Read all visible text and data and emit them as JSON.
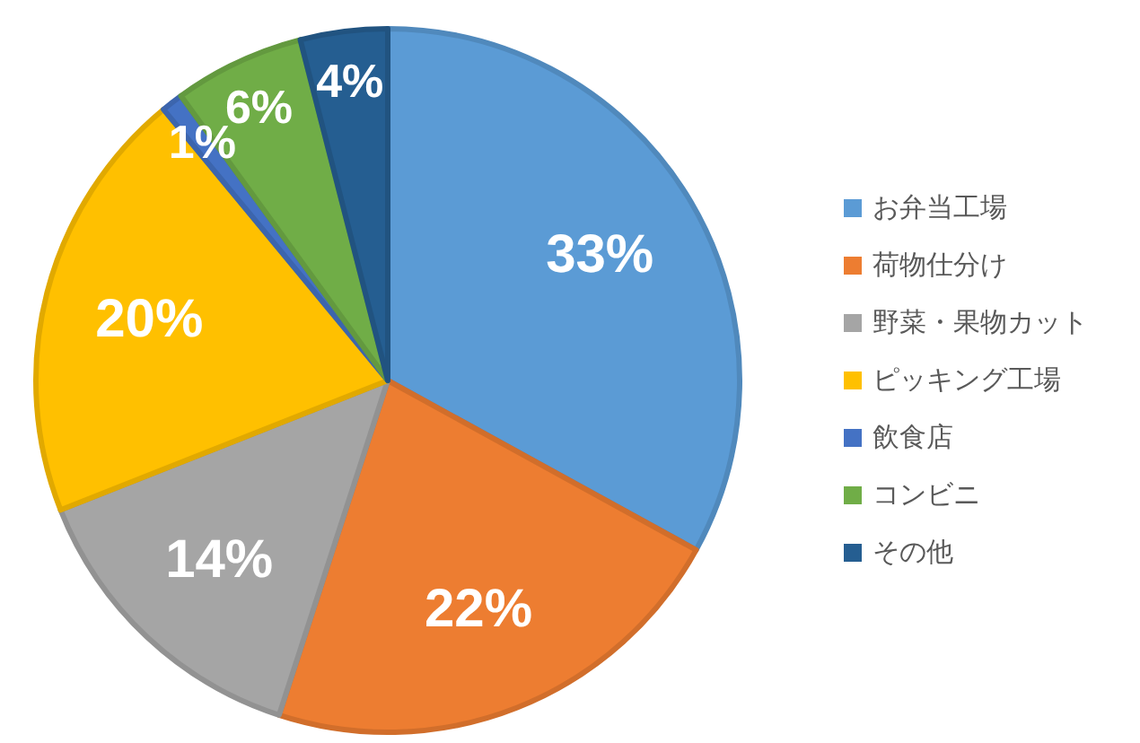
{
  "chart_data": {
    "type": "pie",
    "categories": [
      "お弁当工場",
      "荷物仕分け",
      "野菜・果物カット",
      "ピッキング工場",
      "飲食店",
      "コンビニ",
      "その他"
    ],
    "values": [
      33,
      22,
      14,
      20,
      1,
      6,
      4
    ],
    "value_labels": [
      "33%",
      "22%",
      "14%",
      "20%",
      "1%",
      "6%",
      "4%"
    ],
    "colors": [
      "#5b9bd5",
      "#ed7d31",
      "#a5a5a5",
      "#ffc000",
      "#4472c4",
      "#70ad47",
      "#255e91"
    ],
    "legend": "right"
  }
}
